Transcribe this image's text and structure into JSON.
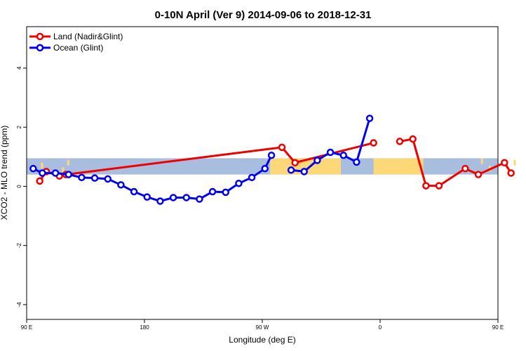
{
  "chart_data": {
    "type": "line",
    "title": "0-10N April (Ver 9)   2014-09-06 to 2018-12-31",
    "xlabel": "Longitude (deg E)",
    "ylabel": "XCO2 - MLO trend (ppm)",
    "xlim": [
      90,
      450
    ],
    "ylim": [
      -4.5,
      5.4
    ],
    "xticks": [
      {
        "value": 90,
        "label": "90 E"
      },
      {
        "value": 180,
        "label": "180"
      },
      {
        "value": 270,
        "label": "90 W"
      },
      {
        "value": 360,
        "label": "0"
      },
      {
        "value": 450,
        "label": "90 E"
      },
      {
        "value": 540,
        "label": "180"
      }
    ],
    "yticks": [
      -4,
      -2,
      0,
      2,
      4
    ],
    "legend_position": "top-left",
    "background_band": {
      "ymin": 0.4,
      "ymax": 0.95,
      "ocean_color": "#a9bedf",
      "land_color": "#fdd879"
    },
    "series": [
      {
        "name": "Land (Nadir&Glint)",
        "color": "#ee0000",
        "x": [
          100,
          105,
          115,
          120,
          285,
          295,
          355,
          365,
          375,
          385,
          395,
          405,
          425,
          435,
          455,
          460
        ],
        "y": [
          0.18,
          0.5,
          0.35,
          0.4,
          1.32,
          0.8,
          1.47,
          null,
          1.52,
          1.6,
          0.02,
          0.02,
          0.6,
          0.4,
          0.8,
          0.45
        ]
      },
      {
        "name": "Ocean (Glint)",
        "color": "#0000ee",
        "x": [
          95,
          102,
          112,
          122,
          132,
          142,
          152,
          162,
          172,
          182,
          192,
          202,
          212,
          222,
          232,
          242,
          252,
          262,
          272,
          277,
          282,
          292,
          302,
          312,
          322,
          332,
          342,
          352,
          362
        ],
        "y": [
          0.6,
          0.45,
          0.45,
          0.4,
          0.3,
          0.28,
          0.25,
          0.05,
          -0.18,
          -0.36,
          -0.5,
          -0.38,
          -0.38,
          -0.43,
          -0.18,
          -0.2,
          0.1,
          0.3,
          0.6,
          1.05,
          null,
          0.55,
          0.5,
          0.88,
          1.15,
          1.05,
          0.82,
          2.3,
          null
        ]
      }
    ]
  }
}
